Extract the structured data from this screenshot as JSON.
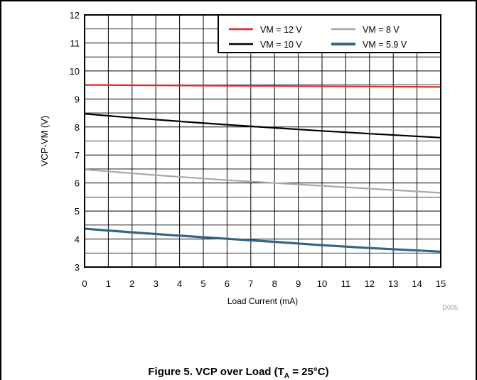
{
  "chart_data": {
    "type": "line",
    "title": "",
    "caption": "Figure 5. VCP over Load (T",
    "caption_sub": "A",
    "caption_tail": " = 25°C)",
    "xlabel": "Load Current (mA)",
    "ylabel": "VCP-VM (V)",
    "xlim": [
      0,
      15
    ],
    "ylim": [
      3,
      12
    ],
    "xticks": [
      0,
      1,
      2,
      3,
      4,
      5,
      6,
      7,
      8,
      9,
      10,
      11,
      12,
      13,
      14,
      15
    ],
    "yticks": [
      3,
      4,
      5,
      6,
      7,
      8,
      9,
      10,
      11,
      12
    ],
    "grid": true,
    "minor_grid": true,
    "legend_position": "top-right",
    "watermark": "D005",
    "series": [
      {
        "name": "VM = 12 V",
        "color": "#e8262a",
        "x": [
          0,
          15
        ],
        "y": [
          9.5,
          9.43
        ]
      },
      {
        "name": "VM = 10 V",
        "color": "#000000",
        "x": [
          0,
          2,
          4,
          6,
          8,
          10,
          12,
          15
        ],
        "y": [
          8.47,
          8.33,
          8.2,
          8.08,
          7.97,
          7.86,
          7.76,
          7.62
        ]
      },
      {
        "name": "VM = 8 V",
        "color": "#a8a8a8",
        "x": [
          0,
          3,
          6,
          9,
          12,
          15
        ],
        "y": [
          6.48,
          6.28,
          6.1,
          5.95,
          5.8,
          5.65
        ]
      },
      {
        "name": "VM = 5.9 V",
        "color": "#336685",
        "x": [
          0,
          2,
          4,
          6,
          8,
          10,
          12,
          15
        ],
        "y": [
          4.37,
          4.24,
          4.12,
          4.01,
          3.9,
          3.78,
          3.68,
          3.55
        ]
      }
    ]
  }
}
